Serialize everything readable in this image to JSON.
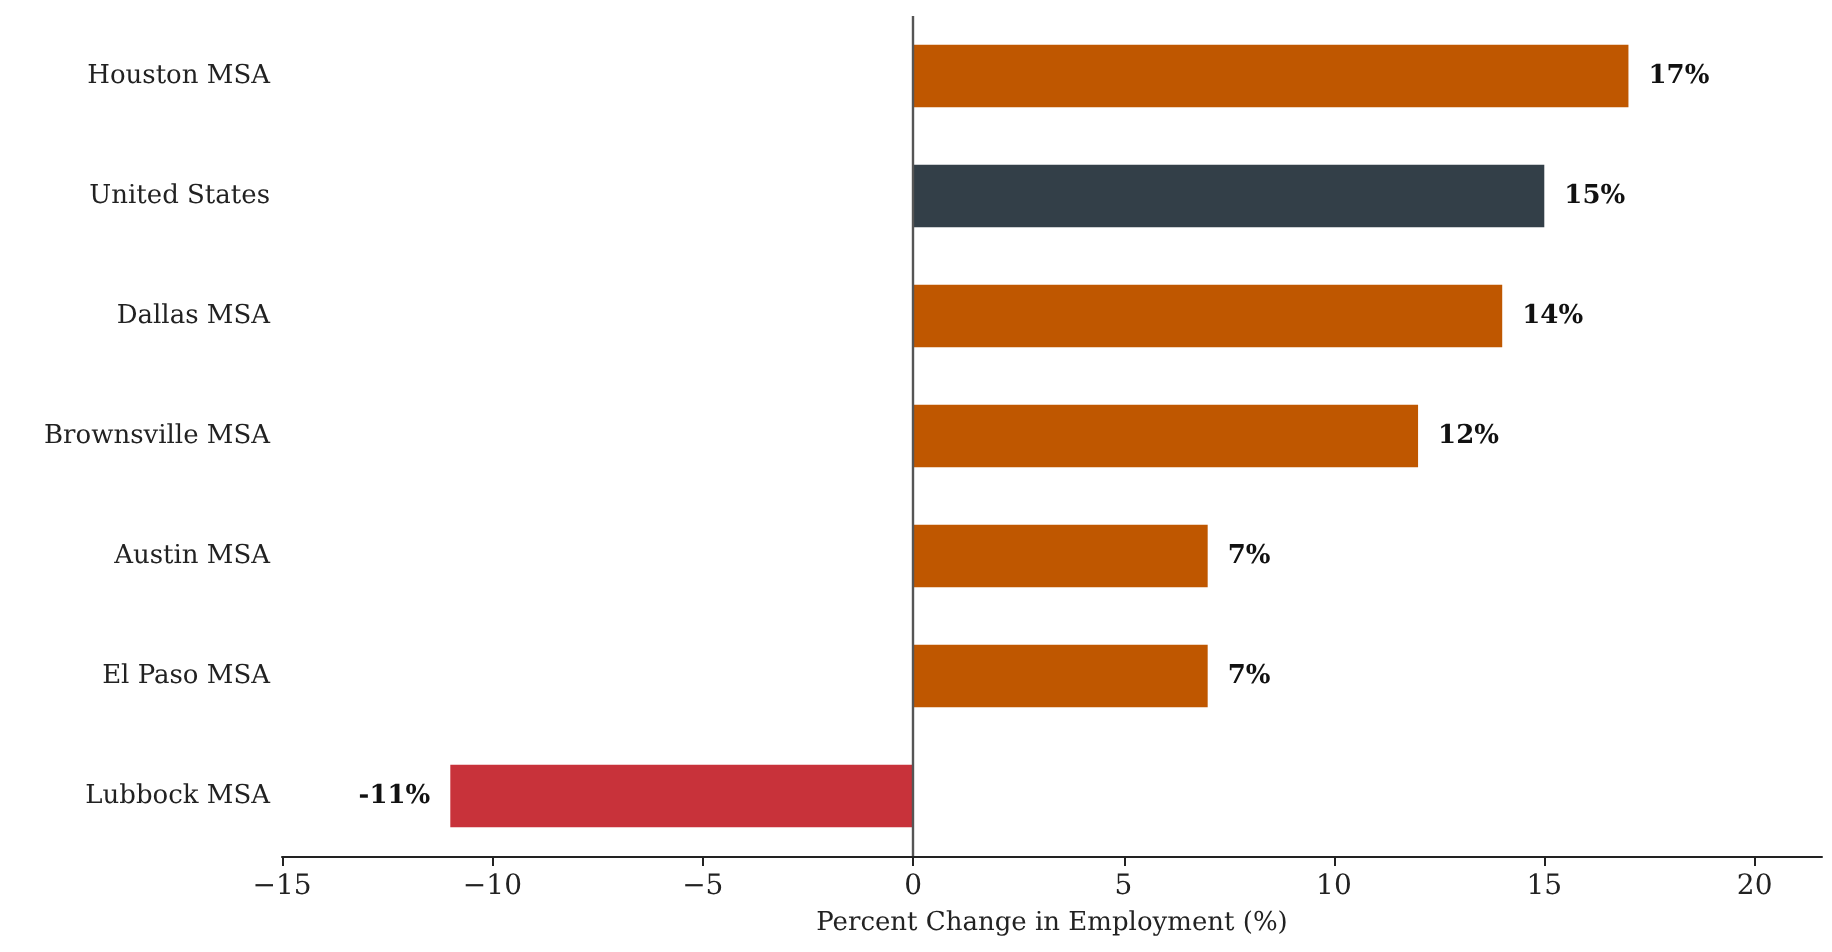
{
  "chart_data": {
    "type": "bar",
    "orientation": "horizontal",
    "xlabel": "Percent Change in Employment (%)",
    "categories": [
      "Houston MSA",
      "United States",
      "Dallas MSA",
      "Brownsville MSA",
      "Austin MSA",
      "El Paso MSA",
      "Lubbock MSA"
    ],
    "values": [
      17,
      15,
      14,
      12,
      7,
      7,
      -11
    ],
    "colors": [
      "#bf5700",
      "#333f48",
      "#bf5700",
      "#bf5700",
      "#bf5700",
      "#bf5700",
      "#c8323a"
    ],
    "value_labels": [
      "17%",
      "15%",
      "14%",
      "12%",
      "7%",
      "7%",
      "-11%"
    ],
    "xlim": [
      -15,
      21.6
    ],
    "xticks": [
      {
        "value": -15,
        "label": "−15"
      },
      {
        "value": -10,
        "label": "−10"
      },
      {
        "value": -5,
        "label": "−5"
      },
      0,
      5,
      10,
      15,
      20
    ],
    "ref_lines": [
      {
        "axis": "x",
        "value": 0,
        "color": "#555555"
      }
    ],
    "grid": false
  }
}
